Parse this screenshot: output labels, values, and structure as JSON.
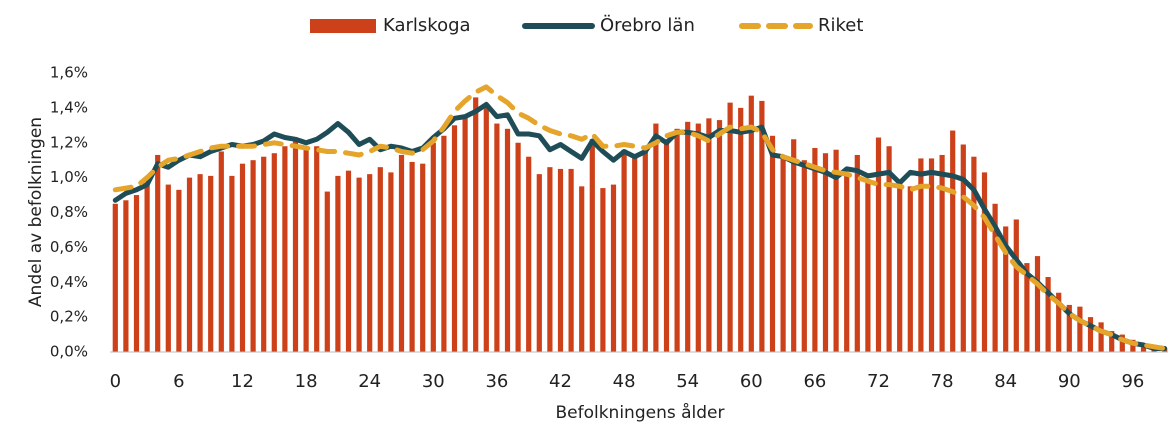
{
  "chart_data": {
    "type": "bar-line",
    "x_label": "Befolkningens ålder",
    "y_label": "Andel av befolkningen",
    "categories": [
      0,
      null,
      null,
      null,
      null,
      null,
      6,
      null,
      null,
      null,
      null,
      null,
      12,
      null,
      null,
      null,
      null,
      null,
      18,
      null,
      null,
      null,
      null,
      null,
      24,
      null,
      null,
      null,
      null,
      null,
      30,
      null,
      null,
      null,
      null,
      null,
      36,
      null,
      null,
      null,
      null,
      null,
      42,
      null,
      null,
      null,
      null,
      null,
      48,
      null,
      null,
      null,
      null,
      null,
      54,
      null,
      null,
      null,
      null,
      null,
      60,
      null,
      null,
      null,
      null,
      null,
      66,
      null,
      null,
      null,
      null,
      null,
      72,
      null,
      null,
      null,
      null,
      null,
      78,
      null,
      null,
      null,
      null,
      null,
      84,
      null,
      null,
      null,
      null,
      null,
      90,
      null,
      null,
      null,
      null,
      null,
      96,
      null,
      null,
      null
    ],
    "series": [
      {
        "name": "Karlskoga",
        "kind": "bar",
        "color": "#cc4119",
        "values": [
          0.85,
          0.87,
          0.9,
          0.97,
          1.13,
          0.96,
          0.93,
          1.0,
          1.02,
          1.01,
          1.15,
          1.01,
          1.08,
          1.1,
          1.12,
          1.14,
          1.18,
          1.21,
          1.17,
          1.18,
          0.92,
          1.01,
          1.04,
          1.0,
          1.02,
          1.06,
          1.03,
          1.13,
          1.09,
          1.08,
          1.2,
          1.24,
          1.3,
          1.35,
          1.46,
          1.4,
          1.31,
          1.28,
          1.2,
          1.12,
          1.02,
          1.06,
          1.05,
          1.05,
          0.95,
          1.22,
          0.94,
          0.96,
          1.16,
          1.13,
          1.15,
          1.31,
          1.22,
          1.28,
          1.32,
          1.31,
          1.34,
          1.33,
          1.43,
          1.4,
          1.47,
          1.44,
          1.24,
          1.13,
          1.22,
          1.1,
          1.17,
          1.14,
          1.16,
          1.03,
          1.13,
          0.97,
          1.23,
          1.18,
          0.97,
          0.95,
          1.11,
          1.11,
          1.13,
          1.27,
          1.19,
          1.12,
          1.03,
          0.85,
          0.72,
          0.76,
          0.51,
          0.55,
          0.43,
          0.34,
          0.27,
          0.26,
          0.2,
          0.17,
          0.12,
          0.1,
          0.07,
          0.05,
          0.03,
          0.02
        ]
      },
      {
        "name": "Örebro län",
        "kind": "line",
        "color": "#1e4d57",
        "values": [
          0.87,
          0.91,
          0.93,
          0.96,
          1.08,
          1.06,
          1.1,
          1.13,
          1.12,
          1.15,
          1.17,
          1.19,
          1.18,
          1.19,
          1.21,
          1.25,
          1.23,
          1.22,
          1.2,
          1.22,
          1.26,
          1.31,
          1.26,
          1.19,
          1.22,
          1.16,
          1.18,
          1.17,
          1.15,
          1.17,
          1.23,
          1.28,
          1.34,
          1.35,
          1.38,
          1.42,
          1.35,
          1.36,
          1.25,
          1.25,
          1.24,
          1.16,
          1.19,
          1.15,
          1.11,
          1.21,
          1.15,
          1.1,
          1.15,
          1.12,
          1.15,
          1.24,
          1.2,
          1.26,
          1.26,
          1.25,
          1.23,
          1.27,
          1.27,
          1.26,
          1.27,
          1.29,
          1.13,
          1.12,
          1.09,
          1.07,
          1.05,
          1.03,
          1.0,
          1.05,
          1.04,
          1.01,
          1.02,
          1.03,
          0.97,
          1.03,
          1.02,
          1.03,
          1.02,
          1.01,
          0.99,
          0.93,
          0.82,
          0.72,
          0.61,
          0.53,
          0.45,
          0.4,
          0.34,
          0.28,
          0.22,
          0.18,
          0.15,
          0.12,
          0.1,
          0.07,
          0.05,
          0.04,
          0.02,
          0.02
        ]
      },
      {
        "name": "Riket",
        "kind": "dashed-line",
        "color": "#e5a42a",
        "values": [
          0.93,
          0.94,
          0.95,
          1.0,
          1.06,
          1.1,
          1.11,
          1.13,
          1.15,
          1.17,
          1.18,
          1.18,
          1.18,
          1.18,
          1.19,
          1.2,
          1.19,
          1.18,
          1.17,
          1.16,
          1.15,
          1.15,
          1.14,
          1.13,
          1.15,
          1.18,
          1.17,
          1.15,
          1.14,
          1.16,
          1.21,
          1.29,
          1.38,
          1.44,
          1.49,
          1.52,
          1.47,
          1.43,
          1.37,
          1.34,
          1.3,
          1.27,
          1.25,
          1.24,
          1.22,
          1.25,
          1.18,
          1.18,
          1.19,
          1.18,
          1.17,
          1.2,
          1.24,
          1.26,
          1.26,
          1.24,
          1.21,
          1.25,
          1.29,
          1.28,
          1.29,
          1.26,
          1.16,
          1.12,
          1.1,
          1.08,
          1.06,
          1.04,
          1.03,
          1.02,
          1.0,
          0.98,
          0.96,
          0.96,
          0.95,
          0.93,
          0.95,
          0.95,
          0.94,
          0.92,
          0.89,
          0.84,
          0.77,
          0.67,
          0.57,
          0.49,
          0.44,
          0.39,
          0.33,
          0.28,
          0.22,
          0.18,
          0.15,
          0.12,
          0.1,
          0.07,
          0.05,
          0.04,
          0.03,
          0.02
        ]
      }
    ],
    "ylim": [
      0,
      1.6
    ],
    "yticks": [
      {
        "value": 0,
        "label": "0,0%"
      },
      {
        "value": 0.2,
        "label": "0,2%"
      },
      {
        "value": 0.4,
        "label": "0,4%"
      },
      {
        "value": 0.6,
        "label": "0,6%"
      },
      {
        "value": 0.8,
        "label": "0,8%"
      },
      {
        "value": 1.0,
        "label": "1,0%"
      },
      {
        "value": 1.2,
        "label": "1,2%"
      },
      {
        "value": 1.4,
        "label": "1,4%"
      },
      {
        "value": 1.6,
        "label": "1,6%"
      }
    ],
    "legend": "top"
  }
}
